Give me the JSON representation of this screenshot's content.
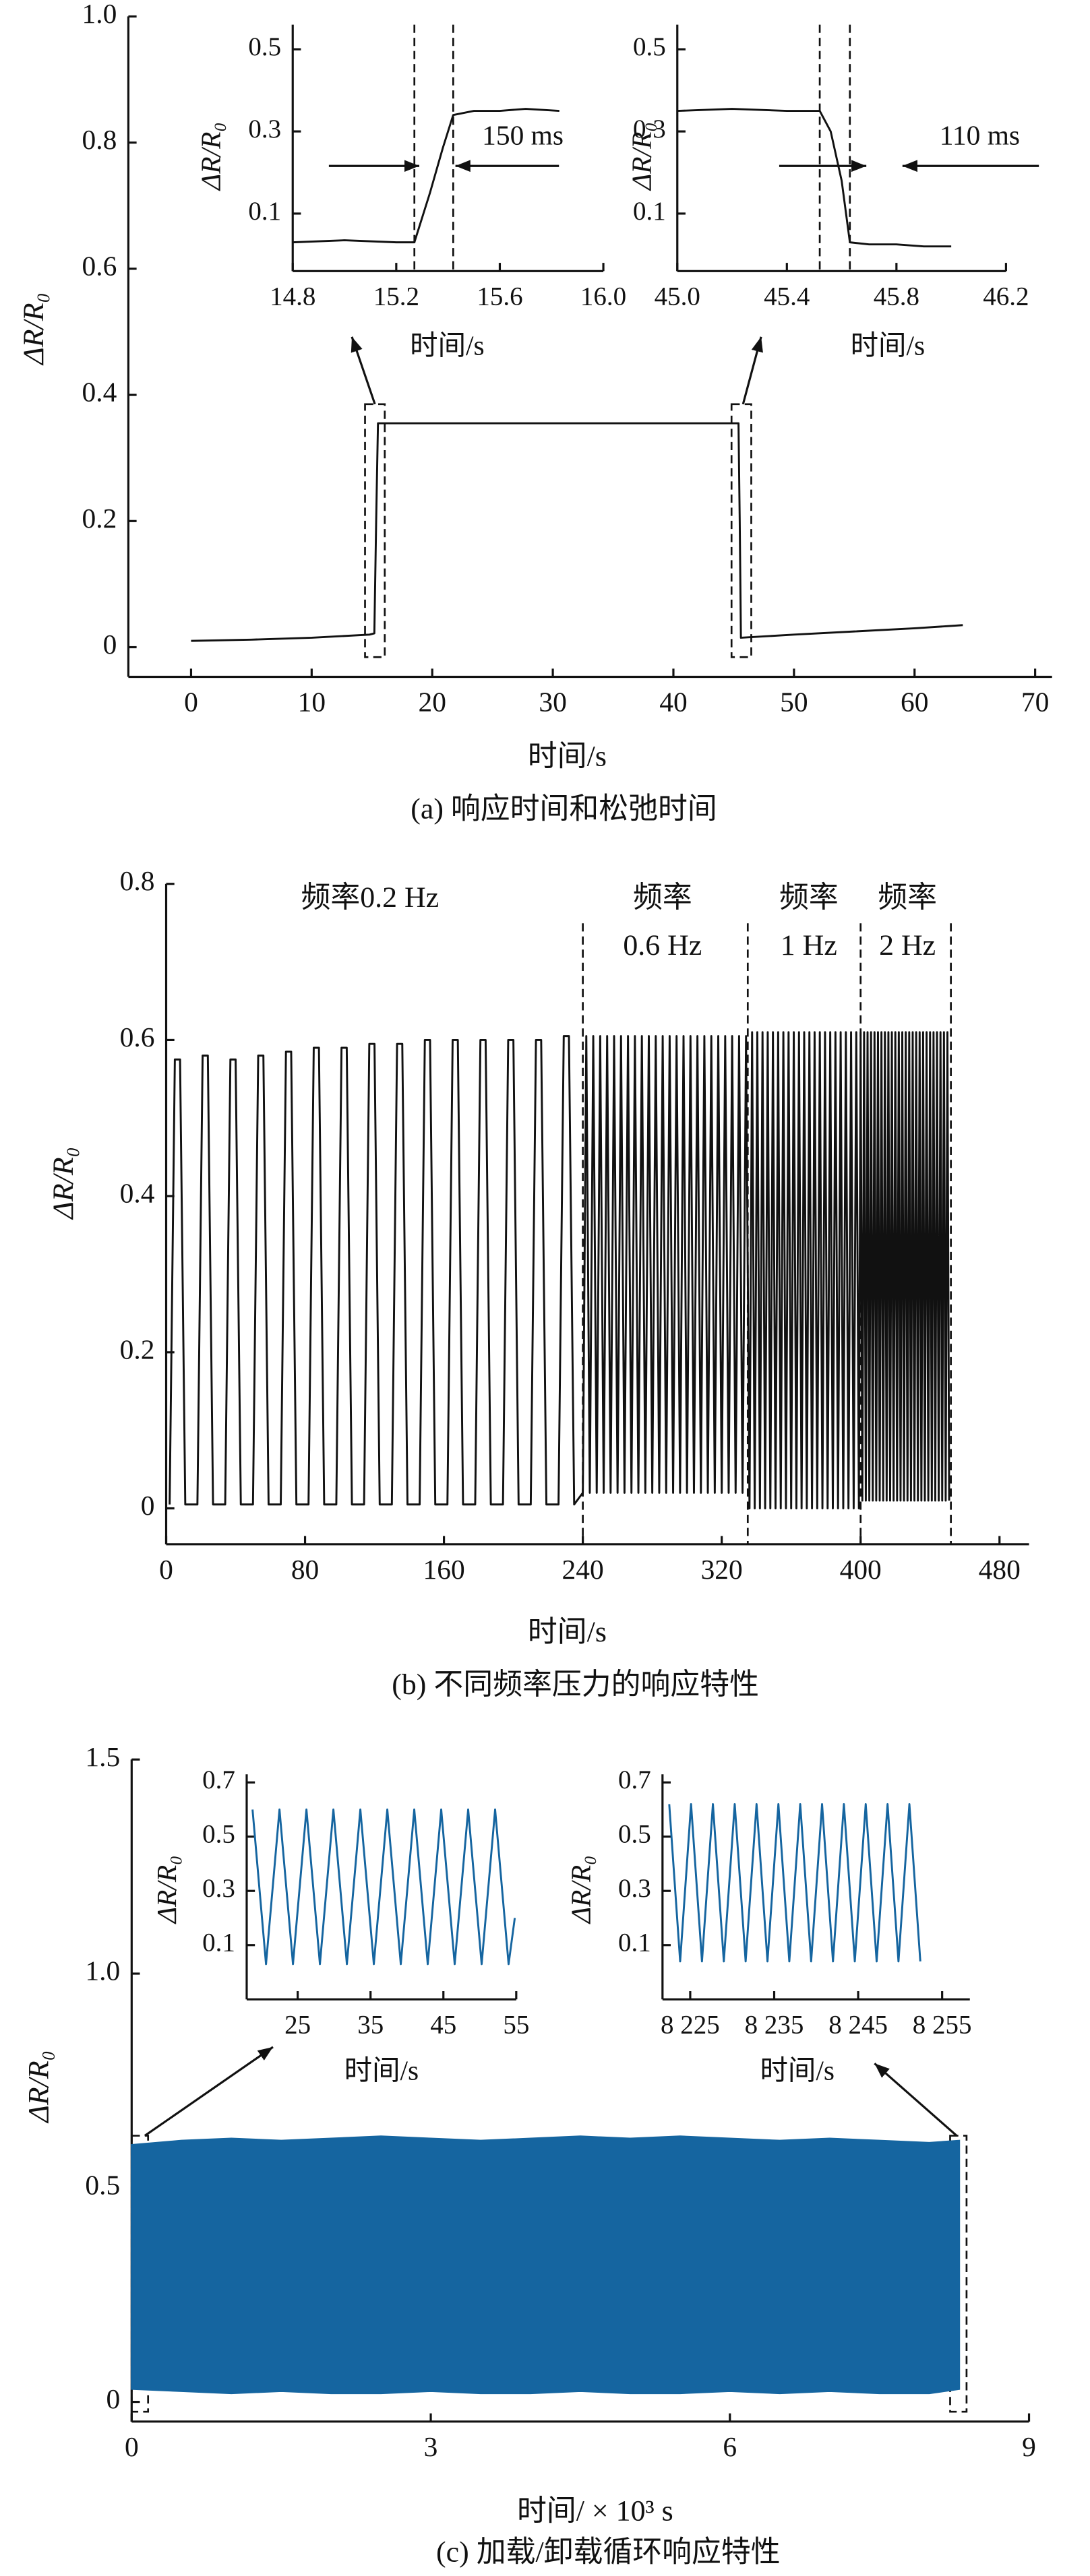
{
  "chart_data": [
    {
      "type": "line",
      "x": [
        0,
        5,
        10,
        14.8,
        15.2,
        15.35,
        15.5,
        20,
        30,
        40,
        45.4,
        45.5,
        45.6,
        50,
        55,
        60,
        64
      ],
      "values": [
        0.01,
        0.012,
        0.015,
        0.02,
        0.022,
        0.2,
        0.355,
        0.355,
        0.355,
        0.355,
        0.355,
        0.2,
        0.015,
        0.02,
        0.025,
        0.03,
        0.035
      ],
      "color": "#111111",
      "xlim": [
        -5.2,
        71.4
      ],
      "ylim": [
        -0.047,
        1.0
      ],
      "xticks": [
        0,
        10,
        20,
        30,
        40,
        50,
        60,
        70
      ],
      "yticks": [
        0,
        0.2,
        0.4,
        0.6,
        0.8,
        {
          "value": 1,
          "label": "1.0"
        }
      ],
      "xlabel": "时间/s",
      "ylabel": "ΔR/R₀",
      "caption": "(a) 响应时间和松弛时间"
    },
    {
      "type": "line",
      "x": [
        14.8,
        15.0,
        15.2,
        15.27,
        15.33,
        15.38,
        15.42,
        15.5,
        15.6,
        15.7,
        15.83
      ],
      "values": [
        0.03,
        0.035,
        0.03,
        0.03,
        0.15,
        0.26,
        0.34,
        0.35,
        0.35,
        0.355,
        0.35
      ],
      "color": "#111111",
      "xlim": [
        14.8,
        16.0
      ],
      "ylim": [
        -0.04,
        0.56
      ],
      "xticks": [
        14.8,
        15.2,
        15.6,
        {
          "value": 16,
          "label": "16.0"
        }
      ],
      "yticks": [
        0.1,
        0.3,
        0.5
      ],
      "vlines": [
        15.27,
        15.42
      ],
      "xlabel": "时间/s",
      "ylabel": "ΔR/R₀",
      "annotations": [
        "150 ms"
      ]
    },
    {
      "type": "line",
      "x": [
        45.0,
        45.2,
        45.4,
        45.52,
        45.56,
        45.6,
        45.63,
        45.7,
        45.8,
        45.9,
        46.0
      ],
      "values": [
        0.35,
        0.355,
        0.35,
        0.35,
        0.3,
        0.18,
        0.03,
        0.025,
        0.025,
        0.02,
        0.02
      ],
      "color": "#111111",
      "xlim": [
        45.0,
        46.2
      ],
      "ylim": [
        -0.04,
        0.56
      ],
      "xticks": [
        {
          "value": 45,
          "label": "45.0"
        },
        45.4,
        45.8,
        46.2
      ],
      "yticks": [
        0.1,
        0.3,
        0.5
      ],
      "vlines": [
        45.52,
        45.63
      ],
      "xlabel": "时间/s",
      "ylabel": "ΔR/R₀",
      "annotations": [
        "110 ms"
      ]
    },
    {
      "type": "line",
      "x": [
        2,
        5,
        8,
        11,
        18,
        21,
        24,
        27,
        34,
        37,
        40,
        43,
        50,
        53,
        56,
        59,
        66,
        69,
        72,
        75,
        82,
        85,
        88,
        91,
        98,
        101,
        104,
        107,
        114,
        117,
        120,
        123,
        130,
        133,
        136,
        139,
        146,
        149,
        152,
        155,
        162,
        165,
        168,
        171,
        178,
        181,
        184,
        187,
        194,
        197,
        200,
        203,
        210,
        213,
        216,
        219,
        226,
        229,
        232,
        235,
        240,
        242,
        244,
        246,
        248,
        250,
        252,
        254,
        256,
        258,
        260,
        262,
        264,
        266,
        268,
        270,
        272,
        274,
        276,
        278,
        280,
        282,
        284,
        286,
        288,
        290,
        292,
        294,
        296,
        298,
        300,
        302,
        304,
        306,
        308,
        310,
        312,
        314,
        316,
        318,
        320,
        322,
        324,
        326,
        328,
        330,
        332,
        334,
        336,
        337.5,
        339,
        340.5,
        342,
        343.5,
        345,
        346.5,
        348,
        349.5,
        351,
        352.5,
        354,
        355.5,
        357,
        358.5,
        360,
        361.5,
        363,
        364.5,
        366,
        367.5,
        369,
        370.5,
        372,
        373.5,
        375,
        376.5,
        378,
        379.5,
        381,
        382.5,
        384,
        385.5,
        387,
        388.5,
        390,
        391.5,
        393,
        394.5,
        396,
        397.5,
        399,
        400,
        401,
        402,
        403,
        404,
        405,
        406,
        407,
        408,
        409,
        410,
        411,
        412,
        413,
        414,
        415,
        416,
        417,
        418,
        419,
        420,
        421,
        422,
        423,
        424,
        425,
        426,
        427,
        428,
        429,
        430,
        431,
        432,
        433,
        434,
        435,
        436,
        437,
        438,
        439,
        440,
        441,
        442,
        443,
        444,
        445,
        446,
        447,
        448,
        449,
        450,
        451
      ],
      "values": [
        0.005,
        0.575,
        0.575,
        0.005,
        0.005,
        0.58,
        0.58,
        0.005,
        0.005,
        0.575,
        0.575,
        0.005,
        0.005,
        0.58,
        0.58,
        0.005,
        0.005,
        0.585,
        0.585,
        0.005,
        0.005,
        0.59,
        0.59,
        0.005,
        0.005,
        0.59,
        0.59,
        0.005,
        0.005,
        0.595,
        0.595,
        0.005,
        0.005,
        0.595,
        0.595,
        0.005,
        0.005,
        0.6,
        0.6,
        0.005,
        0.005,
        0.6,
        0.6,
        0.005,
        0.005,
        0.6,
        0.6,
        0.005,
        0.005,
        0.6,
        0.6,
        0.005,
        0.005,
        0.6,
        0.6,
        0.005,
        0.005,
        0.605,
        0.605,
        0.005,
        0.02,
        0.605,
        0.02,
        0.605,
        0.02,
        0.605,
        0.02,
        0.605,
        0.02,
        0.605,
        0.02,
        0.605,
        0.02,
        0.605,
        0.02,
        0.605,
        0.02,
        0.605,
        0.02,
        0.605,
        0.02,
        0.605,
        0.02,
        0.605,
        0.02,
        0.605,
        0.02,
        0.605,
        0.02,
        0.605,
        0.02,
        0.605,
        0.02,
        0.605,
        0.02,
        0.605,
        0.02,
        0.605,
        0.02,
        0.605,
        0.02,
        0.605,
        0.02,
        0.605,
        0.02,
        0.605,
        0.02,
        0.605,
        0,
        0.61,
        0,
        0.61,
        0,
        0.61,
        0,
        0.61,
        0,
        0.61,
        0,
        0.61,
        0,
        0.61,
        0,
        0.61,
        0,
        0.61,
        0,
        0.61,
        0,
        0.61,
        0,
        0.61,
        0,
        0.61,
        0,
        0.61,
        0,
        0.61,
        0,
        0.61,
        0,
        0.61,
        0,
        0.61,
        0,
        0.61,
        0,
        0.61,
        0,
        0.61,
        0,
        0.61,
        0.01,
        0.61,
        0.01,
        0.61,
        0.01,
        0.61,
        0.01,
        0.61,
        0.01,
        0.61,
        0.01,
        0.61,
        0.01,
        0.61,
        0.01,
        0.61,
        0.01,
        0.61,
        0.01,
        0.61,
        0.01,
        0.61,
        0.01,
        0.61,
        0.01,
        0.61,
        0.01,
        0.61,
        0.01,
        0.61,
        0.01,
        0.61,
        0.01,
        0.61,
        0.01,
        0.61,
        0.01,
        0.61,
        0.01,
        0.61,
        0.01,
        0.61,
        0.01,
        0.61,
        0.01,
        0.61,
        0.01,
        0.61,
        0.01,
        0.61,
        0.01
      ],
      "color": "#111111",
      "xlim": [
        0,
        497
      ],
      "ylim": [
        -0.046,
        0.8
      ],
      "xticks": [
        0,
        80,
        160,
        240,
        320,
        400,
        480
      ],
      "yticks": [
        0,
        0.2,
        0.4,
        0.6,
        0.8
      ],
      "vlines": [
        240,
        335,
        400,
        452
      ],
      "annotations": [
        "频率0.2 Hz",
        "频率",
        "0.6 Hz",
        "频率",
        "1 Hz",
        "频率",
        "2 Hz"
      ],
      "xlabel": "时间/s",
      "ylabel": "ΔR/R₀",
      "caption": "(b) 不同频率压力的响应特性"
    },
    {
      "type": "band",
      "x": [
        0,
        0.5,
        1,
        1.5,
        2,
        2.5,
        3,
        3.5,
        4,
        4.5,
        5,
        5.5,
        6,
        6.5,
        7,
        7.5,
        8,
        8.3
      ],
      "high": [
        0.6,
        0.61,
        0.615,
        0.61,
        0.615,
        0.62,
        0.615,
        0.61,
        0.615,
        0.62,
        0.615,
        0.62,
        0.615,
        0.61,
        0.615,
        0.61,
        0.605,
        0.61
      ],
      "low": [
        0.03,
        0.025,
        0.02,
        0.025,
        0.02,
        0.02,
        0.025,
        0.02,
        0.02,
        0.025,
        0.02,
        0.02,
        0.025,
        0.02,
        0.025,
        0.02,
        0.02,
        0.03
      ],
      "color": "#1565a0",
      "xlim": [
        0,
        9
      ],
      "ylim": [
        -0.046,
        1.5
      ],
      "xticks": [
        0,
        3,
        6,
        9
      ],
      "yticks": [
        0,
        0.5,
        {
          "value": 1,
          "label": "1.0"
        },
        1.5
      ],
      "xlabel": "时间/ × 10³ s",
      "ylabel": "ΔR/R₀",
      "caption": "(c) 加载/卸载循环响应特性"
    },
    {
      "type": "line",
      "x": [
        18.8,
        20.65,
        22.5,
        24.35,
        26.2,
        28.05,
        29.9,
        31.75,
        33.6,
        35.45,
        37.3,
        39.15,
        41,
        42.85,
        44.7,
        46.55,
        48.4,
        50.25,
        52.1,
        53.95,
        54.8
      ],
      "values": [
        0.6,
        0.03,
        0.6,
        0.03,
        0.6,
        0.03,
        0.6,
        0.03,
        0.6,
        0.03,
        0.6,
        0.03,
        0.6,
        0.03,
        0.6,
        0.03,
        0.6,
        0.03,
        0.6,
        0.03,
        0.2
      ],
      "color": "#1565a0",
      "xlim": [
        18,
        55
      ],
      "ylim": [
        -0.1,
        0.73
      ],
      "xticks": [
        25,
        35,
        45,
        55
      ],
      "yticks": [
        0.1,
        0.3,
        0.5,
        0.7
      ],
      "xlabel": "时间/s",
      "ylabel": "ΔR/R₀"
    },
    {
      "type": "line",
      "x": [
        8222.5,
        8223.8,
        8225.1,
        8226.4,
        8227.7,
        8229,
        8230.3,
        8231.6,
        8232.9,
        8234.2,
        8235.5,
        8236.8,
        8238.1,
        8239.4,
        8240.7,
        8242,
        8243.3,
        8244.6,
        8245.9,
        8247.2,
        8248.5,
        8249.8,
        8251.1,
        8252.4
      ],
      "values": [
        0.62,
        0.04,
        0.62,
        0.04,
        0.62,
        0.04,
        0.62,
        0.04,
        0.62,
        0.04,
        0.62,
        0.04,
        0.62,
        0.04,
        0.62,
        0.04,
        0.62,
        0.04,
        0.62,
        0.04,
        0.62,
        0.04,
        0.62,
        0.04
      ],
      "color": "#1565a0",
      "xlim": [
        8221.7,
        8258.3
      ],
      "ylim": [
        -0.1,
        0.73
      ],
      "xticks": [
        {
          "value": 8225,
          "label": "8 225"
        },
        {
          "value": 8235,
          "label": "8 235"
        },
        {
          "value": 8245,
          "label": "8 245"
        },
        {
          "value": 8255,
          "label": "8 255"
        }
      ],
      "yticks": [
        0.1,
        0.3,
        0.5,
        0.7
      ],
      "xlabel": "时间/s",
      "ylabel": "ΔR/R₀"
    }
  ]
}
